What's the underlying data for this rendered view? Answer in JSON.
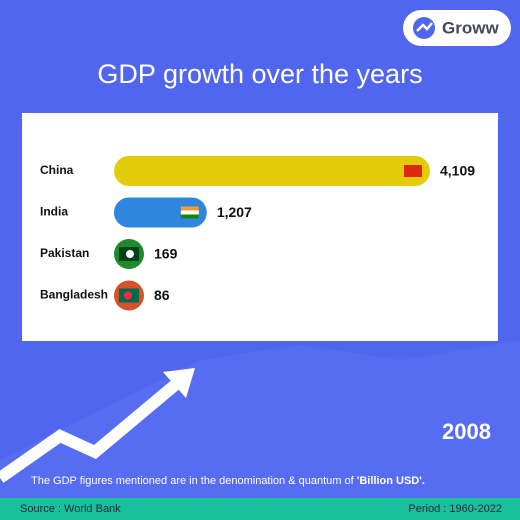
{
  "brand": "Groww",
  "chart_data": {
    "type": "hbar",
    "title": "GDP growth over the years",
    "categories": [
      "China",
      "India",
      "Pakistan",
      "Bangladesh"
    ],
    "values": [
      4109,
      1207,
      169,
      86
    ],
    "value_labels": [
      "4,109",
      "1,207",
      "169",
      "86"
    ],
    "colors": [
      "#e3cb0a",
      "#2e86de",
      "#1e8a2e",
      "#d4532b"
    ],
    "year": "2008",
    "note": "The GDP figures mentioned are in the denomination & quantum of",
    "note_unit": "'Billion USD'.",
    "source": "Source : World Bank",
    "period": "Period : 1960-2022"
  }
}
